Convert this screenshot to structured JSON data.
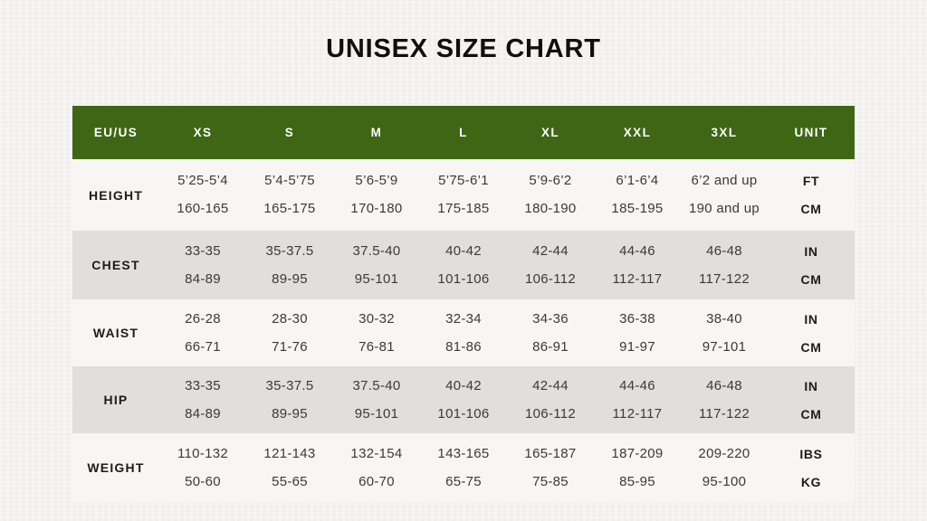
{
  "page": {
    "title": "UNISEX SIZE CHART"
  },
  "colors": {
    "header_bg": "#3e6614",
    "header_text": "#ffffff",
    "shaded_row_bg": "#e0dfdc",
    "light_row_bg": "#f7f6f4",
    "page_bg": "#f3f2f0",
    "value_text": "#3a3a3a"
  },
  "table": {
    "header": [
      "EU/US",
      "XS",
      "S",
      "M",
      "L",
      "XL",
      "XXL",
      "3XL",
      "UNIT"
    ],
    "rows": [
      {
        "label": "HEIGHT",
        "line1": [
          "5’25-5’4",
          "5’4-5’75",
          "5’6-5’9",
          "5’75-6’1",
          "5’9-6’2",
          "6’1-6’4",
          "6’2 and up"
        ],
        "line2": [
          "160-165",
          "165-175",
          "170-180",
          "175-185",
          "180-190",
          "185-195",
          "190 and up"
        ],
        "unit1": "FT",
        "unit2": "CM"
      },
      {
        "label": "CHEST",
        "line1": [
          "33-35",
          "35-37.5",
          "37.5-40",
          "40-42",
          "42-44",
          "44-46",
          "46-48"
        ],
        "line2": [
          "84-89",
          "89-95",
          "95-101",
          "101-106",
          "106-112",
          "112-117",
          "117-122"
        ],
        "unit1": "IN",
        "unit2": "CM"
      },
      {
        "label": "WAIST",
        "line1": [
          "26-28",
          "28-30",
          "30-32",
          "32-34",
          "34-36",
          "36-38",
          "38-40"
        ],
        "line2": [
          "66-71",
          "71-76",
          "76-81",
          "81-86",
          "86-91",
          "91-97",
          "97-101"
        ],
        "unit1": "IN",
        "unit2": "CM"
      },
      {
        "label": "HIP",
        "line1": [
          "33-35",
          "35-37.5",
          "37.5-40",
          "40-42",
          "42-44",
          "44-46",
          "46-48"
        ],
        "line2": [
          "84-89",
          "89-95",
          "95-101",
          "101-106",
          "106-112",
          "112-117",
          "117-122"
        ],
        "unit1": "IN",
        "unit2": "CM"
      },
      {
        "label": "WEIGHT",
        "line1": [
          "110-132",
          "121-143",
          "132-154",
          "143-165",
          "165-187",
          "187-209",
          "209-220"
        ],
        "line2": [
          "50-60",
          "55-65",
          "60-70",
          "65-75",
          "75-85",
          "85-95",
          "95-100"
        ],
        "unit1": "IBS",
        "unit2": "KG"
      }
    ]
  }
}
